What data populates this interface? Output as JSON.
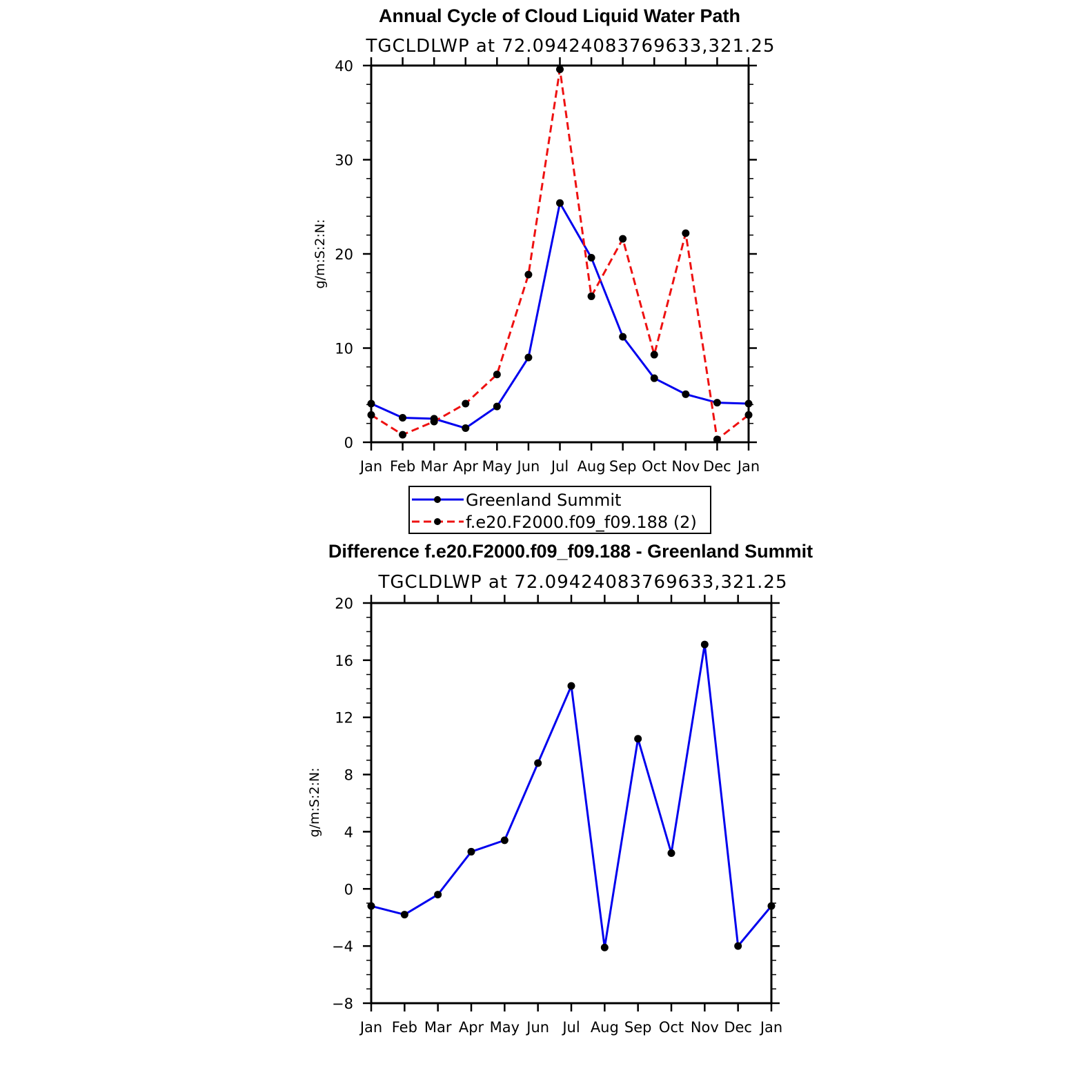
{
  "chart_data": [
    {
      "type": "line",
      "title": "Annual Cycle of Cloud Liquid Water Path",
      "subtitle": "TGCLDLWP  at  72.09424083769633,321.25",
      "ylabel": "g/m:S:2:N:",
      "xlabel": "",
      "categories": [
        "Jan",
        "Feb",
        "Mar",
        "Apr",
        "May",
        "Jun",
        "Jul",
        "Aug",
        "Sep",
        "Oct",
        "Nov",
        "Dec",
        "Jan"
      ],
      "ylim": [
        0,
        40
      ],
      "yticks": [
        "0",
        "10",
        "20",
        "30",
        "40"
      ],
      "legend_position": "bottom",
      "series": [
        {
          "name": "Greenland Summit",
          "color": "#0000ee",
          "dash": "solid",
          "values": [
            4.1,
            2.6,
            2.5,
            1.5,
            3.8,
            9.0,
            25.4,
            19.6,
            11.2,
            6.8,
            5.1,
            4.2,
            4.1
          ]
        },
        {
          "name": "f.e20.F2000.f09_f09.188 (2)",
          "color": "#ee1111",
          "dash": "dashed",
          "values": [
            2.9,
            0.8,
            2.2,
            4.1,
            7.2,
            17.8,
            39.6,
            15.5,
            21.6,
            9.3,
            22.2,
            0.3,
            2.9
          ]
        }
      ]
    },
    {
      "type": "line",
      "title": "Difference f.e20.F2000.f09_f09.188 - Greenland Summit",
      "subtitle": "TGCLDLWP  at  72.09424083769633,321.25",
      "ylabel": "g/m:S:2:N:",
      "xlabel": "",
      "categories": [
        "Jan",
        "Feb",
        "Mar",
        "Apr",
        "May",
        "Jun",
        "Jul",
        "Aug",
        "Sep",
        "Oct",
        "Nov",
        "Dec",
        "Jan"
      ],
      "ylim": [
        -8,
        20
      ],
      "yticks": [
        "−8",
        "−4",
        "0",
        "4",
        "8",
        "12",
        "16",
        "20"
      ],
      "series": [
        {
          "color": "#0000ee",
          "dash": "solid",
          "values": [
            -1.2,
            -1.8,
            -0.4,
            2.6,
            3.4,
            8.8,
            14.2,
            -4.1,
            10.5,
            2.5,
            17.1,
            -4.0,
            -1.2
          ]
        }
      ]
    }
  ]
}
